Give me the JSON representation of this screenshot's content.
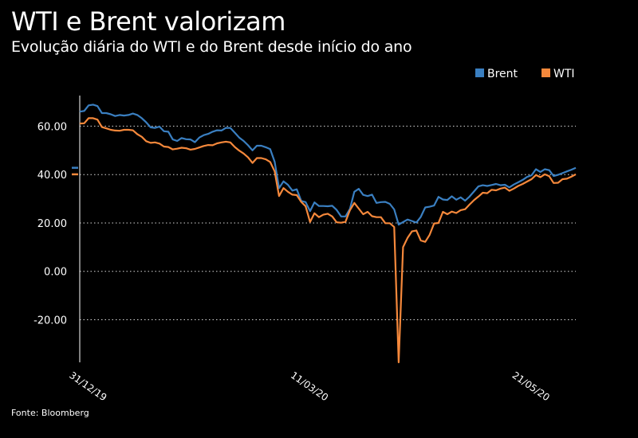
{
  "header": {
    "title": "WTI e Brent valorizam",
    "subtitle": "Evolução diária do WTI e do Brent desde início do ano"
  },
  "footer": {
    "source": "Fonte: Bloomberg"
  },
  "colors": {
    "background": "#000000",
    "text": "#ffffff",
    "brent": "#3a7fc1",
    "wti": "#f5883b",
    "grid": "#ffffff"
  },
  "chart_data": {
    "type": "line",
    "title": "WTI e Brent valorizam",
    "subtitle": "Evolução diária do WTI e do Brent desde início do ano",
    "xlabel": "",
    "ylabel": "",
    "x_tick_labels": [
      "31/12/19",
      "11/03/20",
      "21/05/20"
    ],
    "y_ticks": [
      60,
      40,
      20,
      0,
      -20
    ],
    "y_tick_labels": [
      "60.00",
      "40.00",
      "20.00",
      "0.00",
      "-20.00"
    ],
    "ylim": [
      -37.6,
      71
    ],
    "grid": "horizontal dotted",
    "legend_position": "top-right",
    "x_dates_note": "Daily trading sessions from 31/12/19; ticks at 31/12/19, 11/03/20, 21/05/20",
    "series": [
      {
        "name": "Brent",
        "color": "#3a7fc1",
        "values": [
          66.0,
          66.3,
          68.6,
          68.9,
          68.3,
          65.4,
          65.4,
          64.9,
          64.2,
          64.6,
          64.4,
          64.6,
          65.2,
          64.6,
          63.3,
          61.6,
          59.5,
          59.3,
          59.8,
          57.9,
          57.7,
          54.5,
          53.9,
          55.1,
          54.6,
          54.5,
          53.4,
          55.3,
          56.3,
          56.8,
          57.7,
          58.3,
          58.2,
          59.3,
          59.3,
          57.3,
          55.3,
          53.9,
          52.1,
          50.0,
          51.9,
          51.9,
          51.3,
          50.5,
          45.3,
          34.4,
          37.2,
          35.8,
          33.4,
          33.9,
          29.1,
          28.6,
          24.9,
          28.5,
          27.0,
          27.0,
          26.9,
          27.1,
          25.4,
          22.7,
          22.7,
          25.8,
          32.9,
          34.1,
          31.6,
          31.1,
          31.7,
          28.3,
          28.6,
          28.7,
          27.9,
          25.6,
          19.3,
          20.4,
          21.4,
          20.8,
          20.2,
          22.5,
          26.4,
          26.7,
          27.2,
          30.8,
          29.7,
          29.5,
          31.0,
          29.6,
          30.6,
          29.2,
          30.9,
          33.0,
          35.1,
          35.6,
          35.3,
          35.7,
          36.1,
          35.6,
          35.8,
          34.7,
          35.9,
          36.8,
          37.8,
          39.0,
          39.7,
          42.2,
          41.1,
          42.2,
          41.8,
          39.4,
          39.9,
          40.6,
          41.3,
          42.0,
          42.8
        ]
      },
      {
        "name": "WTI",
        "color": "#f5883b",
        "values": [
          61.1,
          61.2,
          63.3,
          63.3,
          62.7,
          59.6,
          59.1,
          58.5,
          58.2,
          58.1,
          58.5,
          58.5,
          58.3,
          56.7,
          55.6,
          53.8,
          53.1,
          53.3,
          52.8,
          51.6,
          51.4,
          50.4,
          50.7,
          51.1,
          50.9,
          50.3,
          50.6,
          51.2,
          51.8,
          52.2,
          52.1,
          52.9,
          53.3,
          53.6,
          53.3,
          51.4,
          49.9,
          48.7,
          47.1,
          44.8,
          46.8,
          46.8,
          46.3,
          45.2,
          41.3,
          31.1,
          34.4,
          32.9,
          31.7,
          31.5,
          28.7,
          26.9,
          20.4,
          24.0,
          22.4,
          23.4,
          23.8,
          22.7,
          20.3,
          20.1,
          20.5,
          25.3,
          28.3,
          25.9,
          23.6,
          24.6,
          22.8,
          22.4,
          22.4,
          19.9,
          19.9,
          18.3,
          -37.6,
          10.0,
          13.8,
          16.5,
          16.9,
          12.8,
          12.2,
          15.1,
          19.8,
          20.0,
          24.6,
          23.6,
          24.7,
          24.1,
          25.3,
          25.7,
          27.6,
          29.4,
          30.9,
          32.5,
          32.3,
          33.7,
          33.5,
          34.2,
          34.6,
          33.3,
          34.2,
          35.3,
          36.1,
          37.1,
          38.1,
          39.8,
          38.9,
          40.1,
          39.3,
          36.5,
          36.6,
          38.1,
          38.3,
          39.1,
          40.1
        ]
      }
    ]
  }
}
